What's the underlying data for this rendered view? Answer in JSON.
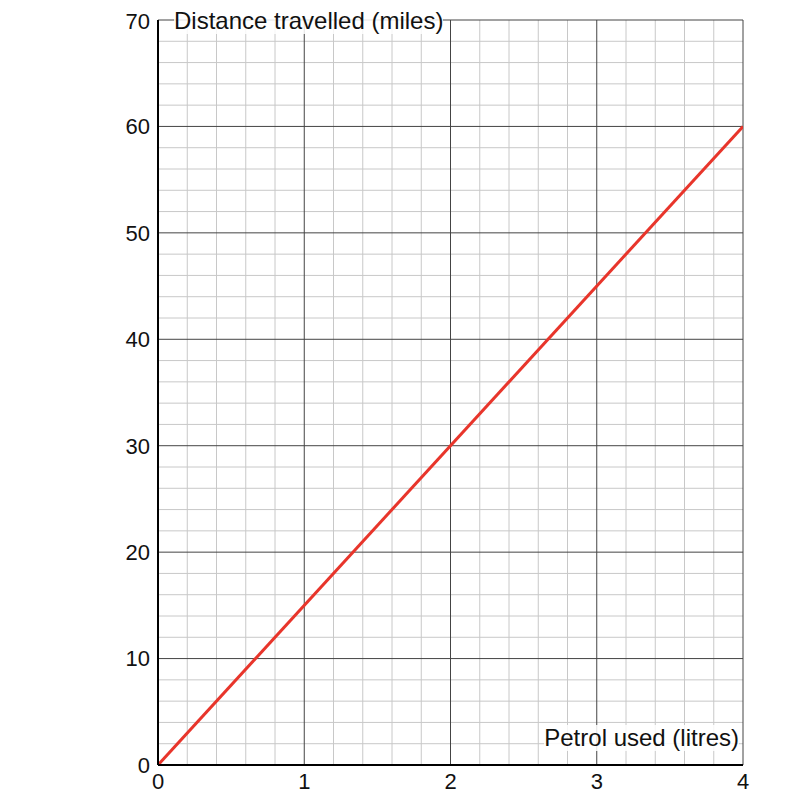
{
  "chart_data": {
    "type": "line",
    "x_label": "Petrol used (litres)",
    "y_label": "Distance travelled (miles)",
    "x": [
      0,
      4
    ],
    "values": [
      0,
      60
    ],
    "color": "#e8352b",
    "xlim": [
      0,
      4
    ],
    "ylim": [
      0,
      70
    ],
    "xticks": [
      0,
      1,
      2,
      3,
      4
    ],
    "yticks": [
      0,
      10,
      20,
      30,
      40,
      50,
      60,
      70
    ],
    "grid": true
  }
}
